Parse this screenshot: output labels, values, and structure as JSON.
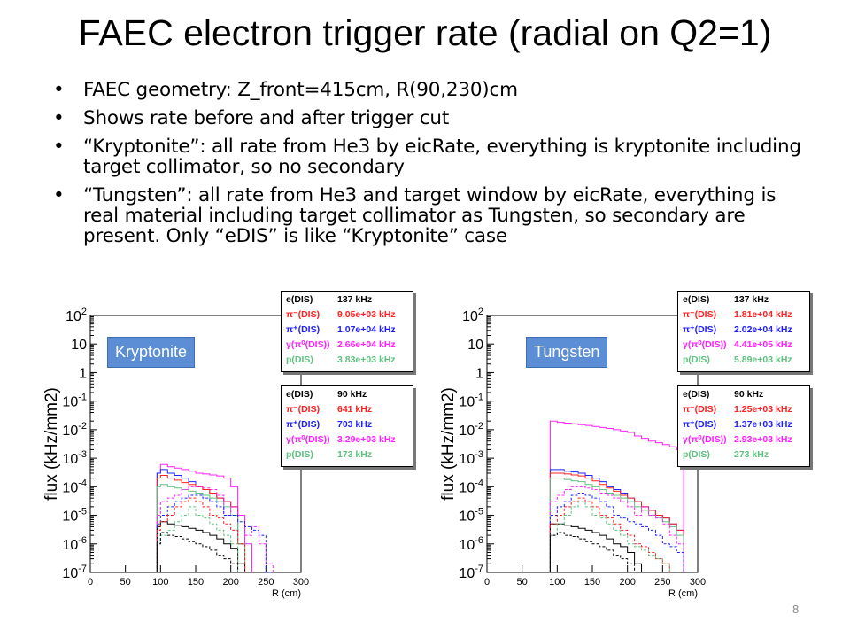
{
  "title": "FAEC electron trigger rate (radial on Q2=1)",
  "bullets": [
    "FAEC geometry: Z_front=415cm, R(90,230)cm",
    "Shows rate before and after trigger cut",
    "“Kryptonite”: all rate from He3 by eicRate, everything is kryptonite including target collimator, so no secondary",
    "“Tungsten”: all rate from He3 and target window by eicRate, everything is real material including target collimator as Tungsten, so secondary are present. Only “eDIS” is like “Kryptonite” case"
  ],
  "bullet_glyph": "•",
  "page_number": "8",
  "colors": {
    "e": "#000000",
    "pim": "#ff2020",
    "pip": "#2020ff",
    "gamma": "#ff20ff",
    "p": "#60c080",
    "tag_bg": "#5b8ed4"
  },
  "chart_data": [
    {
      "type": "line",
      "tag": "Kryptonite",
      "xlabel": "R (cm)",
      "ylabel": "flux (kHz/mm2)",
      "yscale": "log",
      "xlim": [
        0,
        300
      ],
      "ylim": [
        1e-07,
        100
      ],
      "x_ticks": [
        "0",
        "50",
        "100",
        "150",
        "200",
        "250",
        "300"
      ],
      "legend_before": [
        {
          "name": "e(DIS)",
          "value": "137 kHz",
          "color": "#000000"
        },
        {
          "name": "π⁻(DIS)",
          "value": "9.05e+03 kHz",
          "color": "#ff2020"
        },
        {
          "name": "π⁺(DIS)",
          "value": "1.07e+04 kHz",
          "color": "#2020ff"
        },
        {
          "name": "γ(π⁰(DIS))",
          "value": "2.66e+04 kHz",
          "color": "#ff20ff"
        },
        {
          "name": "p(DIS)",
          "value": "3.83e+03 kHz",
          "color": "#60c080"
        }
      ],
      "legend_after": [
        {
          "name": "e(DIS)",
          "value": "90 kHz",
          "color": "#000000"
        },
        {
          "name": "π⁻(DIS)",
          "value": "641 kHz",
          "color": "#ff2020"
        },
        {
          "name": "π⁺(DIS)",
          "value": "703 kHz",
          "color": "#2020ff"
        },
        {
          "name": "γ(π⁰(DIS))",
          "value": "3.29e+03 kHz",
          "color": "#ff20ff"
        },
        {
          "name": "p(DIS)",
          "value": "173 kHz",
          "color": "#60c080"
        }
      ],
      "series": [
        {
          "color": "gamma",
          "dash": false,
          "x": [
            95,
            100,
            110,
            120,
            130,
            140,
            150,
            160,
            170,
            180,
            190,
            200,
            210,
            220
          ],
          "y": [
            0.0003,
            0.0006,
            0.0005,
            0.00045,
            0.0004,
            0.00035,
            0.0003,
            0.00028,
            0.00026,
            0.00024,
            0.0002,
            0.0001,
            1e-05,
            1e-06
          ]
        },
        {
          "color": "pip",
          "dash": false,
          "x": [
            95,
            100,
            110,
            120,
            130,
            140,
            150,
            160,
            170,
            180,
            190,
            200,
            210
          ],
          "y": [
            0.0003,
            0.0004,
            0.0003,
            0.00025,
            0.0002,
            0.00015,
            0.0001,
            8e-05,
            6e-05,
            4e-05,
            3e-05,
            2e-05,
            1e-06
          ]
        },
        {
          "color": "pim",
          "dash": false,
          "x": [
            95,
            100,
            110,
            120,
            130,
            140,
            150,
            160,
            170,
            180,
            190,
            200,
            210
          ],
          "y": [
            0.0002,
            0.00025,
            0.0002,
            0.00017,
            0.00014,
            0.00012,
            0.0001,
            8e-05,
            6e-05,
            4e-05,
            3e-05,
            2e-05,
            1e-06
          ]
        },
        {
          "color": "p",
          "dash": false,
          "x": [
            95,
            100,
            110,
            120,
            130,
            140,
            150,
            160,
            170,
            180,
            190,
            200,
            210
          ],
          "y": [
            0.0001,
            0.00012,
            0.0001,
            9e-05,
            8e-05,
            7e-05,
            6e-05,
            5e-05,
            4e-05,
            3e-05,
            2e-05,
            1e-05,
            1e-06
          ]
        },
        {
          "color": "e",
          "dash": false,
          "x": [
            95,
            100,
            110,
            120,
            130,
            140,
            150,
            160,
            170,
            180,
            190,
            200,
            210
          ],
          "y": [
            4e-06,
            6e-06,
            5e-06,
            4.5e-06,
            4e-06,
            3.5e-06,
            3e-06,
            2.5e-06,
            2e-06,
            1.5e-06,
            1e-06,
            7e-07,
            2e-07
          ]
        },
        {
          "color": "gamma",
          "dash": true,
          "x": [
            95,
            100,
            110,
            120,
            130,
            140,
            150,
            160,
            170,
            180,
            190,
            200,
            210,
            220,
            230,
            240,
            250
          ],
          "y": [
            1e-05,
            3e-05,
            4e-05,
            5e-05,
            8e-05,
            0.0001,
            0.0001,
            9e-05,
            8e-05,
            5e-05,
            1e-05,
            2e-05,
            1e-05,
            2e-06,
            4e-06,
            1e-06,
            2e-07
          ]
        },
        {
          "color": "pip",
          "dash": true,
          "x": [
            95,
            100,
            110,
            120,
            130,
            140,
            150,
            160,
            170,
            180,
            190,
            200,
            210,
            220,
            230,
            240,
            250
          ],
          "y": [
            5e-06,
            1e-05,
            2e-05,
            3e-05,
            4e-05,
            5e-05,
            5e-05,
            4e-05,
            3e-05,
            2e-05,
            1e-05,
            1e-05,
            6e-06,
            4e-06,
            3e-06,
            2e-06,
            1e-07
          ]
        },
        {
          "color": "pim",
          "dash": true,
          "x": [
            95,
            100,
            110,
            120,
            130,
            140,
            150,
            160,
            170,
            180,
            190,
            200,
            210
          ],
          "y": [
            3e-06,
            6e-06,
            1e-05,
            2e-05,
            3e-05,
            4e-05,
            3e-05,
            2e-05,
            1e-05,
            8e-06,
            5e-06,
            3e-06,
            1e-06
          ]
        },
        {
          "color": "p",
          "dash": true,
          "x": [
            95,
            100,
            110,
            120,
            130,
            140,
            150,
            160,
            170,
            180,
            190,
            200
          ],
          "y": [
            1e-06,
            2e-06,
            3e-06,
            6e-06,
            1e-05,
            2e-05,
            1e-05,
            8e-06,
            5e-06,
            3e-06,
            2e-06,
            1e-06
          ]
        },
        {
          "color": "e",
          "dash": true,
          "x": [
            95,
            100,
            110,
            120,
            130,
            140,
            150,
            160,
            170,
            180,
            190,
            200
          ],
          "y": [
            1e-06,
            2.5e-06,
            2e-06,
            1.8e-06,
            1.5e-06,
            1.2e-06,
            1e-06,
            8e-07,
            6e-07,
            4e-07,
            3e-07,
            2e-07
          ]
        }
      ]
    },
    {
      "type": "line",
      "tag": "Tungsten",
      "xlabel": "R (cm)",
      "ylabel": "flux (kHz/mm2)",
      "yscale": "log",
      "xlim": [
        0,
        300
      ],
      "ylim": [
        1e-07,
        100
      ],
      "x_ticks": [
        "0",
        "50",
        "100",
        "150",
        "200",
        "250",
        "300"
      ],
      "legend_before": [
        {
          "name": "e(DIS)",
          "value": "137 kHz",
          "color": "#000000"
        },
        {
          "name": "π⁻(DIS)",
          "value": "1.81e+04 kHz",
          "color": "#ff2020"
        },
        {
          "name": "π⁺(DIS)",
          "value": "2.02e+04 kHz",
          "color": "#2020ff"
        },
        {
          "name": "γ(π⁰(DIS))",
          "value": "4.41e+05 kHz",
          "color": "#ff20ff"
        },
        {
          "name": "p(DIS)",
          "value": "5.89e+03 kHz",
          "color": "#60c080"
        }
      ],
      "legend_after": [
        {
          "name": "e(DIS)",
          "value": "90 kHz",
          "color": "#000000"
        },
        {
          "name": "π⁻(DIS)",
          "value": "1.25e+03 kHz",
          "color": "#ff2020"
        },
        {
          "name": "π⁺(DIS)",
          "value": "1.37e+03 kHz",
          "color": "#2020ff"
        },
        {
          "name": "γ(π⁰(DIS))",
          "value": "2.93e+03 kHz",
          "color": "#ff20ff"
        },
        {
          "name": "p(DIS)",
          "value": "273 kHz",
          "color": "#60c080"
        }
      ],
      "series": [
        {
          "color": "gamma",
          "dash": false,
          "x": [
            90,
            100,
            110,
            120,
            130,
            140,
            150,
            160,
            170,
            180,
            190,
            200,
            210,
            220,
            230,
            240,
            250,
            260,
            270
          ],
          "y": [
            0.02,
            0.018,
            0.017,
            0.016,
            0.015,
            0.014,
            0.013,
            0.012,
            0.011,
            0.01,
            0.009,
            0.008,
            0.006,
            0.005,
            0.004,
            0.0035,
            0.003,
            0.0025,
            0.002
          ]
        },
        {
          "color": "pip",
          "dash": false,
          "x": [
            90,
            100,
            110,
            120,
            130,
            140,
            150,
            160,
            170,
            180,
            190,
            200,
            210,
            220,
            230,
            240,
            250,
            260,
            270
          ],
          "y": [
            0.0004,
            0.0004,
            0.00035,
            0.00033,
            0.0003,
            0.00025,
            0.0002,
            0.00015,
            0.0001,
            8e-05,
            6e-05,
            4e-05,
            3e-05,
            2e-05,
            1.5e-05,
            1e-05,
            8e-06,
            5e-06,
            3e-06
          ]
        },
        {
          "color": "pim",
          "dash": false,
          "x": [
            90,
            100,
            110,
            120,
            130,
            140,
            150,
            160,
            170,
            180,
            190,
            200,
            210,
            220,
            230,
            240,
            250,
            260,
            270
          ],
          "y": [
            0.0003,
            0.0003,
            0.00028,
            0.00026,
            0.00024,
            0.0002,
            0.00016,
            0.00012,
            9e-05,
            7e-05,
            5e-05,
            4e-05,
            3e-05,
            2e-05,
            1.5e-05,
            1e-05,
            8e-06,
            5e-06,
            3e-06
          ]
        },
        {
          "color": "p",
          "dash": false,
          "x": [
            90,
            100,
            110,
            120,
            130,
            140,
            150,
            160,
            170,
            180,
            190,
            200,
            210,
            220,
            230,
            240,
            250,
            260,
            270
          ],
          "y": [
            0.0002,
            0.0002,
            0.00018,
            0.00016,
            0.00015,
            0.00012,
            0.0001,
            8e-05,
            6e-05,
            5e-05,
            4e-05,
            3e-05,
            2e-05,
            1.5e-05,
            1e-05,
            8e-06,
            6e-06,
            4e-06,
            2e-06
          ]
        },
        {
          "color": "e",
          "dash": false,
          "x": [
            90,
            100,
            110,
            120,
            130,
            140,
            150,
            160,
            170,
            180,
            190,
            200,
            210
          ],
          "y": [
            5e-06,
            5e-06,
            4.5e-06,
            4e-06,
            3.5e-06,
            3e-06,
            2.5e-06,
            2e-06,
            1.5e-06,
            1e-06,
            8e-07,
            5e-07,
            2e-07
          ]
        },
        {
          "color": "gamma",
          "dash": true,
          "x": [
            90,
            100,
            110,
            120,
            130,
            140,
            150,
            160,
            170,
            180,
            190,
            200,
            210,
            220,
            230,
            240,
            250,
            260,
            270
          ],
          "y": [
            3e-05,
            5e-05,
            8e-05,
            0.0001,
            0.0001,
            9e-05,
            8e-05,
            6e-05,
            5e-05,
            4e-05,
            3e-05,
            2e-05,
            1e-05,
            2e-05,
            1e-05,
            8e-06,
            5e-06,
            2e-06,
            1e-06
          ]
        },
        {
          "color": "pip",
          "dash": true,
          "x": [
            90,
            100,
            110,
            120,
            130,
            140,
            150,
            160,
            170,
            180,
            190,
            200,
            210,
            220,
            230,
            240,
            250,
            260,
            270
          ],
          "y": [
            1e-05,
            2e-05,
            3e-05,
            5e-05,
            6e-05,
            5e-05,
            4e-05,
            3e-05,
            2e-05,
            1e-05,
            8e-06,
            6e-06,
            5e-06,
            4e-06,
            3e-06,
            2e-06,
            1e-06,
            8e-07,
            5e-07
          ]
        },
        {
          "color": "pim",
          "dash": true,
          "x": [
            90,
            100,
            110,
            120,
            130,
            140,
            150,
            160,
            170,
            180,
            190,
            200,
            210,
            220,
            230,
            240,
            250
          ],
          "y": [
            5e-06,
            1e-05,
            2e-05,
            3e-05,
            4e-05,
            3e-05,
            2e-05,
            1e-05,
            8e-06,
            5e-06,
            3e-06,
            2e-06,
            1e-06,
            8e-07,
            5e-07,
            3e-07,
            2e-07
          ]
        },
        {
          "color": "p",
          "dash": true,
          "x": [
            90,
            100,
            110,
            120,
            130,
            140,
            150,
            160,
            170,
            180,
            190,
            200,
            210,
            220,
            230,
            240,
            250
          ],
          "y": [
            2e-06,
            5e-06,
            1e-05,
            2e-05,
            3e-05,
            2e-05,
            1e-05,
            8e-06,
            5e-06,
            3e-06,
            2e-06,
            1e-06,
            8e-07,
            6e-07,
            4e-07,
            3e-07,
            2e-07
          ]
        },
        {
          "color": "e",
          "dash": true,
          "x": [
            90,
            100,
            110,
            120,
            130,
            140,
            150,
            160,
            170,
            180,
            190,
            200,
            210
          ],
          "y": [
            2e-06,
            2.5e-06,
            2e-06,
            1.8e-06,
            1.5e-06,
            1.2e-06,
            1e-06,
            8e-07,
            6e-07,
            4e-07,
            3e-07,
            2e-07,
            1e-07
          ]
        }
      ]
    }
  ]
}
